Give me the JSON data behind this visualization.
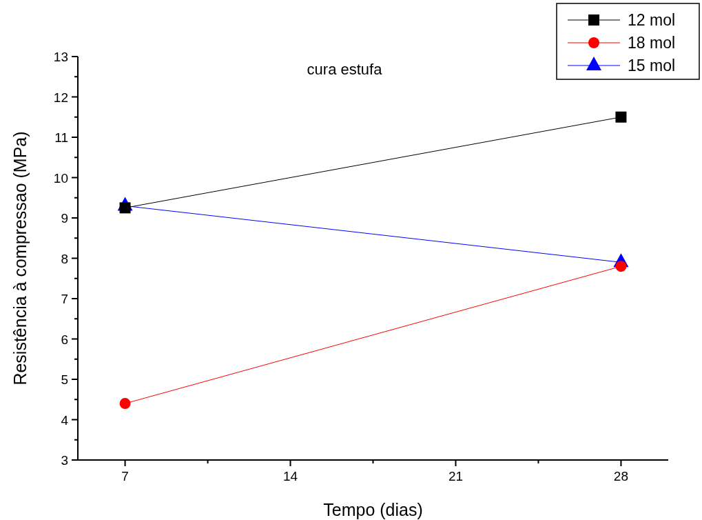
{
  "chart_data": {
    "type": "line",
    "title": "cura estufa",
    "xlabel": "Tempo (dias)",
    "ylabel": "Resistência à compressao (MPa)",
    "x": [
      7,
      28
    ],
    "series": [
      {
        "name": "12 mol",
        "color": "#000000",
        "marker": "square",
        "values": [
          9.25,
          11.5
        ]
      },
      {
        "name": "18 mol",
        "color": "#ff0000",
        "marker": "circle",
        "values": [
          4.4,
          7.8
        ]
      },
      {
        "name": "15 mol",
        "color": "#0000ff",
        "marker": "triangle",
        "values": [
          9.3,
          7.9
        ]
      }
    ],
    "xlim": [
      5,
      30
    ],
    "xticks": [
      7,
      {
        "value": 10.5,
        "label": null
      },
      14,
      {
        "value": 17.5,
        "label": null
      },
      21,
      {
        "value": 24.5,
        "label": null
      },
      28
    ],
    "ylim": [
      3,
      13
    ],
    "yticks": [
      3,
      {
        "value": 3.5,
        "label": null
      },
      4,
      {
        "value": 4.5,
        "label": null
      },
      5,
      {
        "value": 5.5,
        "label": null
      },
      6,
      {
        "value": 6.5,
        "label": null
      },
      7,
      {
        "value": 7.5,
        "label": null
      },
      8,
      {
        "value": 8.5,
        "label": null
      },
      9,
      {
        "value": 9.5,
        "label": null
      },
      10,
      {
        "value": 10.5,
        "label": null
      },
      11,
      {
        "value": 11.5,
        "label": null
      },
      12,
      {
        "value": 12.5,
        "label": null
      },
      13
    ],
    "legend": "top right",
    "grid": false,
    "line_style": "solid"
  }
}
